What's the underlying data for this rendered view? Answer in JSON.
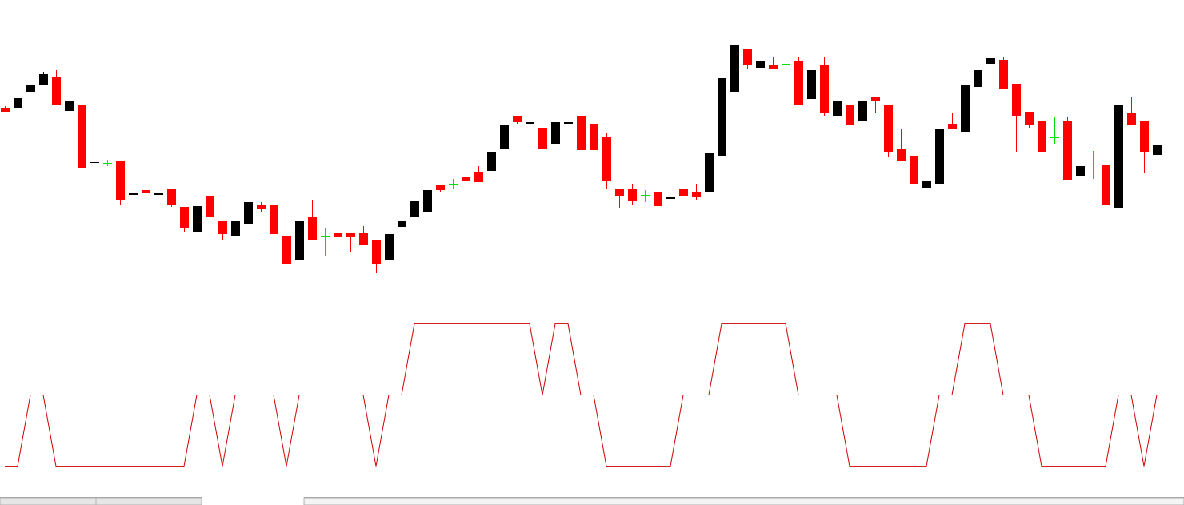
{
  "chart_data": [
    {
      "type": "candlestick",
      "open": [
        265,
        265,
        285,
        294,
        304,
        261,
        269,
        196,
        196,
        199,
        156,
        163,
        156,
        164,
        141,
        110,
        155,
        124,
        105,
        120,
        144,
        144,
        105,
        75,
        129,
        105,
        109,
        109,
        109,
        100,
        75,
        116,
        129,
        135,
        169,
        170,
        179,
        185,
        186,
        214,
        255,
        245,
        240,
        220,
        245,
        255,
        245,
        229,
        164,
        164,
        156,
        160,
        151,
        164,
        160,
        160,
        205,
        285,
        339,
        315,
        319,
        320,
        324,
        276,
        319,
        255,
        269,
        249,
        279,
        269,
        214,
        205,
        165,
        170,
        245,
        235,
        291,
        320,
        325,
        295,
        260,
        249,
        229,
        249,
        180,
        198,
        194,
        140,
        259,
        249,
        206
      ],
      "high": [
        268,
        278,
        294,
        310,
        313,
        274,
        269,
        198,
        200,
        199,
        159,
        163,
        159,
        164,
        141,
        143,
        155,
        124,
        124,
        148,
        148,
        144,
        105,
        124,
        150,
        115,
        118,
        109,
        118,
        100,
        108,
        124,
        149,
        163,
        169,
        176,
        193,
        193,
        210,
        244,
        255,
        248,
        240,
        248,
        248,
        255,
        250,
        234,
        164,
        170,
        162,
        160,
        154,
        164,
        170,
        209,
        303,
        344,
        339,
        324,
        329,
        326,
        329,
        313,
        329,
        274,
        269,
        274,
        279,
        269,
        239,
        205,
        174,
        239,
        259,
        294,
        313,
        328,
        329,
        295,
        260,
        249,
        254,
        254,
        193,
        211,
        194,
        269,
        279,
        249,
        219
      ],
      "low": [
        260,
        265,
        285,
        294,
        269,
        261,
        190,
        196,
        192,
        144,
        156,
        151,
        156,
        141,
        110,
        110,
        120,
        100,
        105,
        120,
        135,
        108,
        70,
        75,
        100,
        80,
        85,
        85,
        94,
        59,
        75,
        116,
        129,
        135,
        160,
        164,
        169,
        173,
        186,
        214,
        245,
        245,
        214,
        220,
        245,
        213,
        213,
        164,
        140,
        144,
        148,
        129,
        151,
        155,
        150,
        160,
        205,
        285,
        314,
        315,
        314,
        304,
        269,
        276,
        255,
        255,
        239,
        249,
        259,
        204,
        199,
        155,
        165,
        170,
        239,
        235,
        291,
        320,
        289,
        210,
        240,
        205,
        220,
        175,
        180,
        176,
        144,
        140,
        244,
        184,
        206
      ],
      "close": [
        260,
        278,
        294,
        308,
        269,
        274,
        190,
        198,
        196,
        150,
        159,
        159,
        159,
        144,
        115,
        143,
        129,
        108,
        124,
        148,
        139,
        108,
        70,
        124,
        100,
        105,
        104,
        104,
        94,
        70,
        108,
        124,
        149,
        163,
        163,
        170,
        174,
        173,
        210,
        244,
        248,
        248,
        214,
        248,
        248,
        213,
        213,
        174,
        155,
        149,
        156,
        143,
        154,
        155,
        154,
        209,
        303,
        344,
        319,
        324,
        314,
        320,
        269,
        313,
        259,
        274,
        244,
        274,
        274,
        210,
        199,
        170,
        174,
        239,
        239,
        294,
        313,
        328,
        289,
        255,
        244,
        210,
        229,
        175,
        193,
        198,
        144,
        269,
        244,
        210,
        219
      ],
      "ylim": [
        50,
        360
      ],
      "up_color": "#000000",
      "down_color": "#ff0000",
      "doji_color": "#00dd00"
    },
    {
      "type": "line",
      "values": [
        0,
        0,
        1,
        1,
        0,
        0,
        0,
        0,
        0,
        0,
        0,
        0,
        0,
        0,
        0,
        1,
        1,
        0,
        1,
        1,
        1,
        1,
        0,
        1,
        1,
        1,
        1,
        1,
        1,
        0,
        1,
        1,
        2,
        2,
        2,
        2,
        2,
        2,
        2,
        2,
        2,
        2,
        1,
        2,
        2,
        1,
        1,
        0,
        0,
        0,
        0,
        0,
        0,
        1,
        1,
        1,
        2,
        2,
        2,
        2,
        2,
        2,
        1,
        1,
        1,
        1,
        0,
        0,
        0,
        0,
        0,
        0,
        0,
        1,
        1,
        2,
        2,
        2,
        1,
        1,
        1,
        0,
        0,
        0,
        0,
        0,
        0,
        1,
        1,
        0,
        1
      ],
      "color": "#cc0000",
      "ylim": [
        -0.1,
        2.1
      ]
    }
  ]
}
